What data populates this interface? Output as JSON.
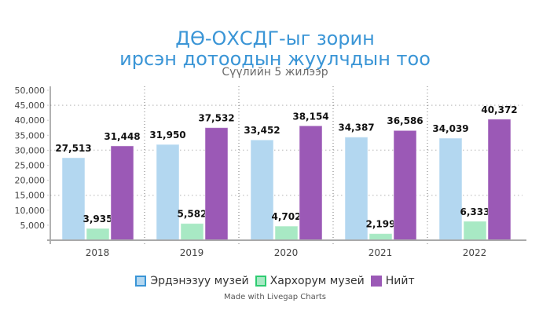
{
  "header": {
    "title_line1": "ДӨ-ОХСДГ-ыг зорин",
    "title_line2": "ирсэн дотоодын жуулчдын тоо",
    "subtitle": "Сүүлийн 5 жилээр"
  },
  "legend": {
    "items": [
      {
        "label": "Эрдэнэзуу музей",
        "fill": "#b3d7f0",
        "border": "#3a95d6"
      },
      {
        "label": "Хархорум музей",
        "fill": "#a8e9c4",
        "border": "#2ecc71"
      },
      {
        "label": "Нийт",
        "fill": "#9b59b6",
        "border": "#9b59b6"
      }
    ]
  },
  "footer": {
    "credit": "Made with Livegap Charts"
  },
  "colors": {
    "title": "#3a95d6",
    "series1": "#b3d7f0",
    "series2": "#a8e9c4",
    "series3": "#9b59b6",
    "axis": "#aaaaaa",
    "grid": "#cccccc"
  },
  "chart_data": {
    "type": "bar",
    "title": "ДӨ-ОХСДГ-ыг зорин ирсэн дотоодын жуулчдын тоо",
    "subtitle": "Сүүлийн 5 жилээр",
    "xlabel": "",
    "ylabel": "",
    "categories": [
      "2018",
      "2019",
      "2020",
      "2021",
      "2022"
    ],
    "series": [
      {
        "name": "Эрдэнэзуу музей",
        "values": [
          27513,
          31950,
          33452,
          34387,
          34039
        ]
      },
      {
        "name": "Хархорум музей",
        "values": [
          3935,
          5582,
          4702,
          2199,
          6333
        ]
      },
      {
        "name": "Нийт",
        "values": [
          31448,
          37532,
          38154,
          36586,
          40372
        ]
      }
    ],
    "ylim": [
      0,
      50000
    ],
    "yticks": [
      "5,000",
      "10,000",
      "15,000",
      "20,000",
      "25,000",
      "30,000",
      "35,000",
      "40,000",
      "45,000",
      "50,000"
    ],
    "ytick_values": [
      5000,
      10000,
      15000,
      20000,
      25000,
      30000,
      35000,
      40000,
      45000,
      50000
    ],
    "gridlines_y": [
      15000,
      30000,
      45000
    ],
    "data_labels": [
      [
        "27,513",
        "31,950",
        "33,452",
        "34,387",
        "34,039"
      ],
      [
        "3,935",
        "5,582",
        "4,702",
        "2,199",
        "6,333"
      ],
      [
        "31,448",
        "37,532",
        "38,154",
        "36,586",
        "40,372"
      ]
    ],
    "legend_position": "bottom"
  }
}
